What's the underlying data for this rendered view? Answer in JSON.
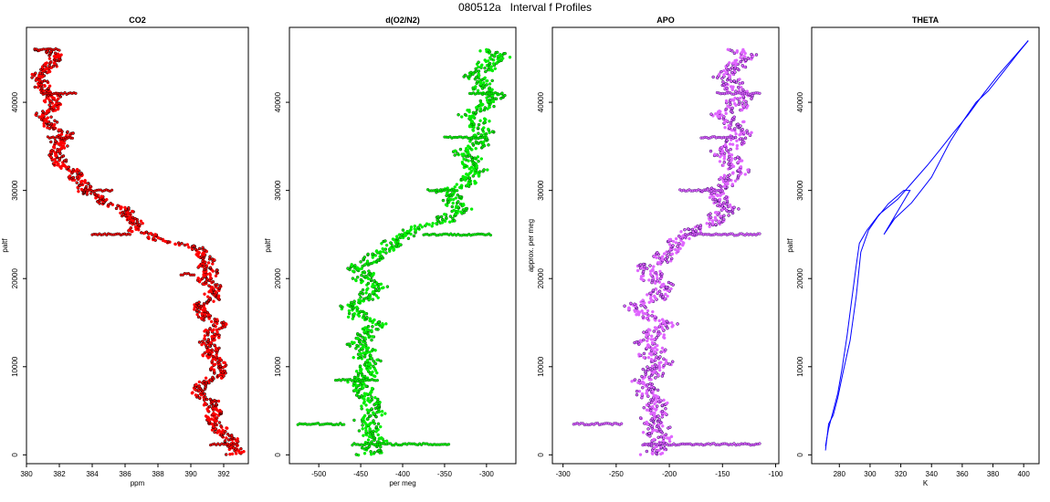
{
  "title": "080512a   Interval f Profiles",
  "chart_data": [
    {
      "type": "scatter",
      "title": "CO2",
      "xlabel": "ppm",
      "ylabel": "paltf",
      "xlim": [
        380,
        393.5
      ],
      "ylim": [
        -1000,
        48500
      ],
      "xticks": [
        380,
        382,
        384,
        386,
        388,
        390,
        392
      ],
      "yticks": [
        0,
        10000,
        20000,
        30000,
        40000
      ],
      "color": "#ff0000",
      "profile": [
        [
          0,
          392.6
        ],
        [
          1500,
          392.2
        ],
        [
          3000,
          392.0
        ],
        [
          4500,
          391.2
        ],
        [
          6000,
          390.9
        ],
        [
          7500,
          390.6
        ],
        [
          9000,
          391.6
        ],
        [
          10500,
          391.3
        ],
        [
          12000,
          391.6
        ],
        [
          13500,
          391.0
        ],
        [
          15000,
          391.4
        ],
        [
          16500,
          390.8
        ],
        [
          18000,
          391.2
        ],
        [
          19500,
          390.9
        ],
        [
          21000,
          391.5
        ],
        [
          22500,
          390.6
        ],
        [
          23500,
          390.0
        ],
        [
          24500,
          388.0
        ],
        [
          25500,
          387.0
        ],
        [
          26500,
          386.4
        ],
        [
          27500,
          385.8
        ],
        [
          28500,
          385.0
        ],
        [
          29500,
          384.2
        ],
        [
          30500,
          383.6
        ],
        [
          31500,
          382.8
        ],
        [
          32500,
          382.4
        ],
        [
          33500,
          382.0
        ],
        [
          34500,
          382.2
        ],
        [
          35500,
          381.8
        ],
        [
          36500,
          382.0
        ],
        [
          37500,
          381.5
        ],
        [
          38500,
          381.4
        ],
        [
          39500,
          381.7
        ],
        [
          40500,
          381.3
        ],
        [
          41500,
          381.0
        ],
        [
          42500,
          381.1
        ],
        [
          43500,
          381.2
        ],
        [
          44500,
          381.5
        ],
        [
          45500,
          381.3
        ],
        [
          46000,
          381.0
        ]
      ],
      "spread": 0.45,
      "spikes": [
        [
          1200,
          391.2,
          392.8
        ],
        [
          20500,
          389.4,
          390.2
        ],
        [
          25000,
          384.0,
          386.3
        ],
        [
          30000,
          383.6,
          385.2
        ],
        [
          36000,
          381.3,
          382.8
        ],
        [
          41000,
          380.9,
          383.0
        ],
        [
          46000,
          380.5,
          382.0
        ]
      ]
    },
    {
      "type": "scatter",
      "title": "d(O2/N2)",
      "xlabel": "per meg",
      "ylabel": "paltf",
      "xlim": [
        -535,
        -265
      ],
      "ylim": [
        -1000,
        48500
      ],
      "xticks": [
        -500,
        -450,
        -400,
        -350,
        -300
      ],
      "yticks": [
        0,
        10000,
        20000,
        30000,
        40000
      ],
      "color": "#00ee00",
      "profile": [
        [
          0,
          -445
        ],
        [
          1500,
          -440
        ],
        [
          3000,
          -430
        ],
        [
          4500,
          -440
        ],
        [
          6000,
          -445
        ],
        [
          7500,
          -440
        ],
        [
          9000,
          -450
        ],
        [
          10500,
          -445
        ],
        [
          12000,
          -440
        ],
        [
          13500,
          -450
        ],
        [
          15000,
          -440
        ],
        [
          16500,
          -455
        ],
        [
          18000,
          -445
        ],
        [
          19500,
          -440
        ],
        [
          21000,
          -445
        ],
        [
          22500,
          -440
        ],
        [
          23500,
          -425
        ],
        [
          24500,
          -400
        ],
        [
          25500,
          -380
        ],
        [
          26500,
          -355
        ],
        [
          27500,
          -345
        ],
        [
          28500,
          -335
        ],
        [
          29500,
          -340
        ],
        [
          30500,
          -330
        ],
        [
          31500,
          -325
        ],
        [
          32500,
          -320
        ],
        [
          33500,
          -315
        ],
        [
          34500,
          -318
        ],
        [
          35500,
          -310
        ],
        [
          36500,
          -315
        ],
        [
          37500,
          -305
        ],
        [
          38500,
          -310
        ],
        [
          39500,
          -305
        ],
        [
          40500,
          -300
        ],
        [
          41500,
          -305
        ],
        [
          42500,
          -300
        ],
        [
          43500,
          -305
        ],
        [
          44500,
          -300
        ],
        [
          45500,
          -295
        ],
        [
          46000,
          -300
        ]
      ],
      "spread": 12,
      "spikes": [
        [
          1200,
          -460,
          -345
        ],
        [
          3500,
          -525,
          -470
        ],
        [
          8500,
          -480,
          -430
        ],
        [
          25000,
          -375,
          -295
        ],
        [
          30000,
          -370,
          -335
        ],
        [
          36000,
          -350,
          -300
        ],
        [
          41000,
          -320,
          -285
        ]
      ]
    },
    {
      "type": "scatter",
      "title": "APO",
      "xlabel": "",
      "ylabel": "approx. per meg",
      "xlim": [
        -310,
        -97
      ],
      "ylim": [
        -1000,
        48500
      ],
      "xticks": [
        -300,
        -250,
        -200,
        -150,
        -100
      ],
      "yticks": [
        0,
        10000,
        20000,
        30000,
        40000
      ],
      "color": "#e066ff",
      "profile": [
        [
          0,
          -220
        ],
        [
          1500,
          -215
        ],
        [
          3000,
          -205
        ],
        [
          4500,
          -215
        ],
        [
          6000,
          -220
        ],
        [
          7500,
          -215
        ],
        [
          9000,
          -220
        ],
        [
          10500,
          -215
        ],
        [
          12000,
          -210
        ],
        [
          13500,
          -220
        ],
        [
          15000,
          -210
        ],
        [
          16500,
          -225
        ],
        [
          18000,
          -215
        ],
        [
          19500,
          -210
        ],
        [
          21000,
          -215
        ],
        [
          22500,
          -210
        ],
        [
          23500,
          -200
        ],
        [
          24500,
          -185
        ],
        [
          25500,
          -170
        ],
        [
          26500,
          -160
        ],
        [
          27500,
          -155
        ],
        [
          28500,
          -150
        ],
        [
          29500,
          -152
        ],
        [
          30500,
          -148
        ],
        [
          31500,
          -145
        ],
        [
          32500,
          -142
        ],
        [
          33500,
          -140
        ],
        [
          34500,
          -143
        ],
        [
          35500,
          -140
        ],
        [
          36500,
          -142
        ],
        [
          37500,
          -138
        ],
        [
          38500,
          -140
        ],
        [
          39500,
          -138
        ],
        [
          40500,
          -137
        ],
        [
          41500,
          -140
        ],
        [
          42500,
          -138
        ],
        [
          43500,
          -140
        ],
        [
          44500,
          -137
        ],
        [
          45500,
          -135
        ],
        [
          46000,
          -138
        ]
      ],
      "spread": 10,
      "spikes": [
        [
          1200,
          -225,
          -115
        ],
        [
          3500,
          -290,
          -245
        ],
        [
          25000,
          -185,
          -115
        ],
        [
          30000,
          -190,
          -150
        ],
        [
          36000,
          -170,
          -140
        ],
        [
          41000,
          -155,
          -115
        ]
      ]
    },
    {
      "type": "line",
      "title": "THETA",
      "xlabel": "K",
      "ylabel": "paltf",
      "xlim": [
        262,
        410
      ],
      "ylim": [
        -1000,
        48500
      ],
      "xticks": [
        280,
        300,
        320,
        340,
        360,
        380,
        400
      ],
      "yticks": [
        0,
        10000,
        20000,
        30000,
        40000
      ],
      "color": "#0000ff",
      "series": [
        {
          "points": [
            [
              271,
              500
            ],
            [
              272,
              2000
            ],
            [
              273,
              3500
            ],
            [
              276,
              4500
            ],
            [
              279,
              6500
            ],
            [
              282,
              9000
            ],
            [
              287,
              13000
            ],
            [
              291,
              18000
            ],
            [
              294,
              23000
            ],
            [
              299,
              25500
            ],
            [
              305,
              27000
            ],
            [
              312,
              28500
            ],
            [
              322,
              30000
            ],
            [
              326,
              30000
            ],
            [
              309,
              25000
            ],
            [
              316,
              26800
            ],
            [
              327,
              28600
            ],
            [
              340,
              31500
            ],
            [
              352,
              35500
            ],
            [
              361,
              38000
            ],
            [
              369,
              40000
            ],
            [
              377,
              41300
            ],
            [
              387,
              43500
            ],
            [
              396,
              45500
            ],
            [
              403,
              47000
            ]
          ]
        },
        {
          "points": [
            [
              403,
              47000
            ],
            [
              395,
              45400
            ],
            [
              383,
              43000
            ],
            [
              374,
              41000
            ],
            [
              364,
              38600
            ],
            [
              354,
              36500
            ],
            [
              345,
              34500
            ],
            [
              338,
              33000
            ],
            [
              328,
              31000
            ],
            [
              318,
              29000
            ],
            [
              306,
              27300
            ],
            [
              298,
              25500
            ],
            [
              293,
              24000
            ],
            [
              291,
              21500
            ],
            [
              288,
              17500
            ],
            [
              285,
              13500
            ],
            [
              282,
              10000
            ],
            [
              279,
              7000
            ],
            [
              276,
              5000
            ],
            [
              273,
              3000
            ],
            [
              271,
              1000
            ]
          ]
        }
      ]
    }
  ]
}
